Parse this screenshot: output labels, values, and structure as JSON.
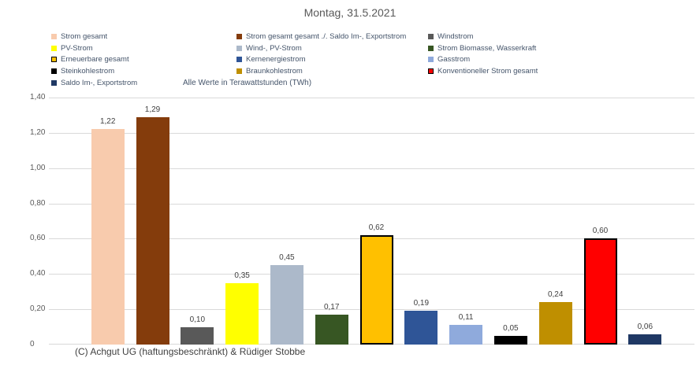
{
  "title": "Montag, 31.5.2021",
  "subtitle": "Alle Werte in Terawattstunden (TWh)",
  "footer": "(C) Achgut UG (haftungsbeschränkt) & Rüdiger Stobbe",
  "chart_data": {
    "type": "bar",
    "title": "Montag, 31.5.2021",
    "unit_note": "Alle Werte in Terawattstunden (TWh)",
    "ylim": [
      0,
      1.4
    ],
    "ytick_step": 0.2,
    "grid": true,
    "legend_position": "top",
    "value_label_decimal": "comma",
    "yticks": [
      {
        "value": 0.0,
        "label": "0"
      },
      {
        "value": 0.2,
        "label": "0,20"
      },
      {
        "value": 0.4,
        "label": "0,40"
      },
      {
        "value": 0.6,
        "label": "0,60"
      },
      {
        "value": 0.8,
        "label": "0,80"
      },
      {
        "value": 1.0,
        "label": "1,00"
      },
      {
        "value": 1.2,
        "label": "1,20"
      },
      {
        "value": 1.4,
        "label": "1,40"
      }
    ],
    "series": [
      {
        "name": "Strom gesamt",
        "value": 1.22,
        "label": "1,22",
        "color": "#F8CBAD",
        "border": false
      },
      {
        "name": "Strom gesamt gesamt ./. Saldo Im-, Exportstrom",
        "value": 1.29,
        "label": "1,29",
        "color": "#843C0C",
        "border": false
      },
      {
        "name": "Windstrom",
        "value": 0.1,
        "label": "0,10",
        "color": "#595959",
        "border": false
      },
      {
        "name": "PV-Strom",
        "value": 0.35,
        "label": "0,35",
        "color": "#FFFF00",
        "border": false
      },
      {
        "name": "Wind-, PV-Strom",
        "value": 0.45,
        "label": "0,45",
        "color": "#ACB9CA",
        "border": false
      },
      {
        "name": "Strom Biomasse, Wasserkraft",
        "value": 0.17,
        "label": "0,17",
        "color": "#375623",
        "border": false
      },
      {
        "name": "Erneuerbare gesamt",
        "value": 0.62,
        "label": "0,62",
        "color": "#FFC000",
        "border": true
      },
      {
        "name": "Kernenergiestrom",
        "value": 0.19,
        "label": "0,19",
        "color": "#2F5597",
        "border": false
      },
      {
        "name": "Gasstrom",
        "value": 0.11,
        "label": "0,11",
        "color": "#8FAADC",
        "border": false
      },
      {
        "name": "Steinkohlestrom",
        "value": 0.05,
        "label": "0,05",
        "color": "#000000",
        "border": false
      },
      {
        "name": "Braunkohlestrom",
        "value": 0.24,
        "label": "0,24",
        "color": "#BF8F00",
        "border": false
      },
      {
        "name": "Konventioneller Strom gesamt",
        "value": 0.6,
        "label": "0,60",
        "color": "#FF0000",
        "border": true
      },
      {
        "name": "Saldo Im-, Exportstrom",
        "value": 0.06,
        "label": "0,06",
        "color": "#1F3864",
        "border": false
      }
    ],
    "legend_layout": {
      "columns": [
        [
          0,
          3,
          6,
          9,
          12
        ],
        [
          1,
          4,
          7,
          10
        ],
        [
          2,
          5,
          8,
          11
        ]
      ]
    },
    "colors": {
      "background": "#FFFFFF",
      "gridline": "#D9D9D9",
      "title_text": "#595959",
      "legend_text": "#44546A",
      "axis_text": "#595959",
      "value_label_text": "#404040",
      "footer_text": "#404040"
    }
  }
}
